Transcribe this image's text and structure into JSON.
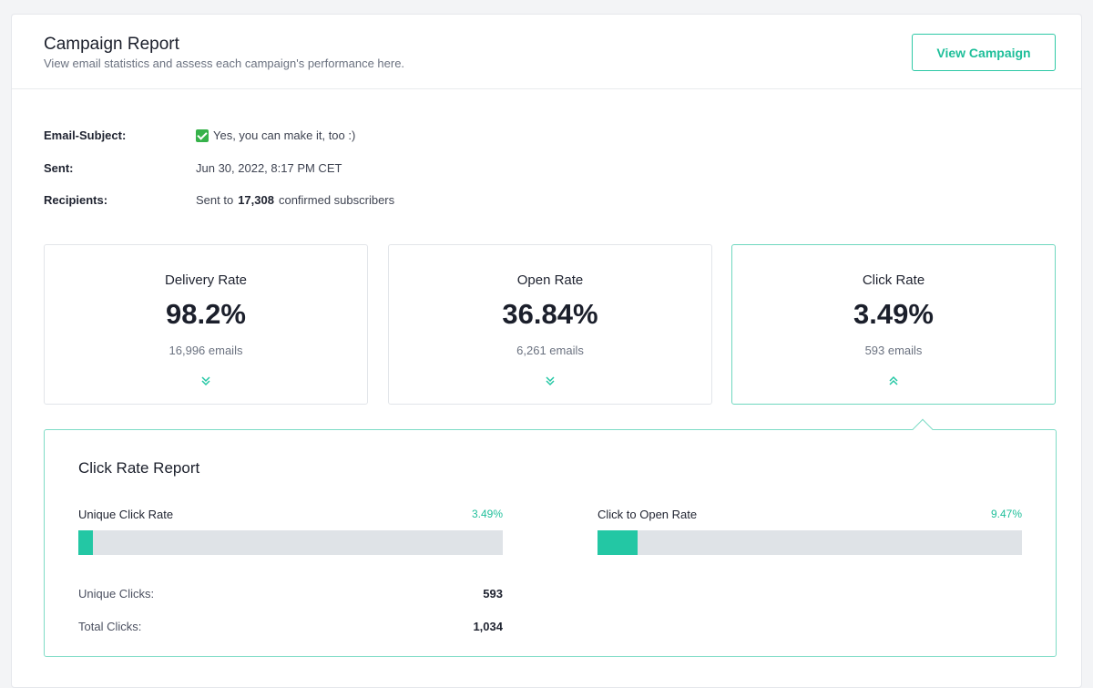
{
  "header": {
    "title": "Campaign Report",
    "subtitle": "View email statistics and assess each campaign's performance here.",
    "view_button": "View Campaign"
  },
  "meta": {
    "subject_label": "Email-Subject:",
    "subject_value": "Yes, you can make it, too :)",
    "sent_label": "Sent:",
    "sent_value": "Jun 30, 2022, 8:17 PM CET",
    "recipients_label": "Recipients:",
    "recipients_prefix": "Sent to",
    "recipients_count": "17,308",
    "recipients_suffix": "confirmed subscribers"
  },
  "stats": [
    {
      "label": "Delivery Rate",
      "value": "98.2%",
      "sub": "16,996 emails",
      "icon": "chevron-double-down-icon",
      "active": false
    },
    {
      "label": "Open Rate",
      "value": "36.84%",
      "sub": "6,261 emails",
      "icon": "chevron-double-down-icon",
      "active": false
    },
    {
      "label": "Click Rate",
      "value": "3.49%",
      "sub": "593 emails",
      "icon": "chevron-double-up-icon",
      "active": true
    }
  ],
  "report": {
    "title": "Click Rate Report",
    "unique_click_rate_label": "Unique Click Rate",
    "unique_click_rate_value": "3.49%",
    "unique_click_rate_fraction": 0.0349,
    "click_to_open_label": "Click to Open Rate",
    "click_to_open_value": "9.47%",
    "click_to_open_fraction": 0.0947,
    "unique_clicks_label": "Unique Clicks:",
    "unique_clicks_value": "593",
    "total_clicks_label": "Total Clicks:",
    "total_clicks_value": "1,034"
  },
  "colors": {
    "accent": "#23c7a4",
    "track": "#dfe3e7"
  }
}
